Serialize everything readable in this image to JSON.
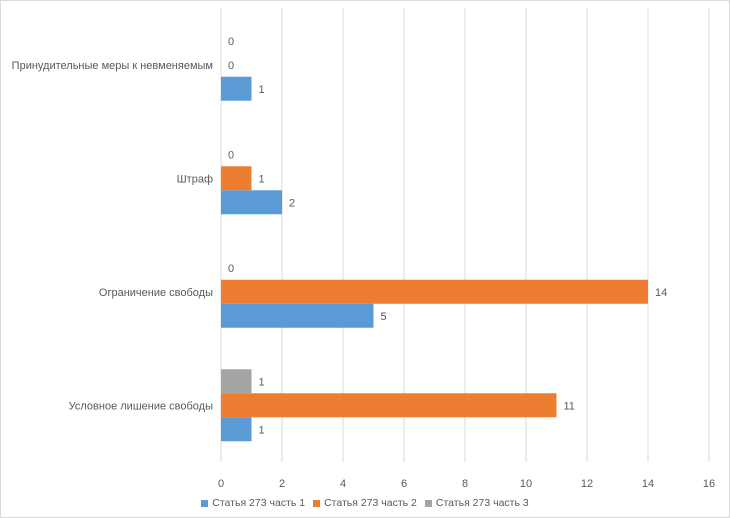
{
  "chart_data": {
    "type": "bar",
    "orientation": "horizontal",
    "title": "",
    "xlabel": "",
    "ylabel": "",
    "categories": [
      "Условное лишение свободы",
      "Ограничение свободы",
      "Штраф",
      "Принудительные меры к невменяемым"
    ],
    "series": [
      {
        "name": "Статья 273 часть 1",
        "color": "#5b9bd5",
        "values": [
          1,
          5,
          2,
          1
        ]
      },
      {
        "name": "Статья 273 часть 2",
        "color": "#ed7d31",
        "values": [
          11,
          14,
          1,
          0
        ]
      },
      {
        "name": "Статья 273 часть 3",
        "color": "#a5a5a5",
        "values": [
          1,
          0,
          0,
          0
        ]
      }
    ],
    "xlim": [
      0,
      16
    ],
    "xticks": [
      "0",
      "2",
      "4",
      "6",
      "8",
      "10",
      "12",
      "14",
      "16"
    ],
    "grid": true,
    "data_labels": true,
    "legend_position": "bottom"
  }
}
